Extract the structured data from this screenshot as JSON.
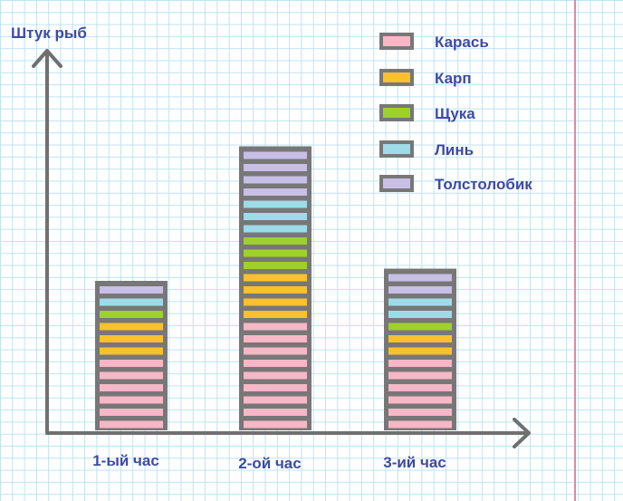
{
  "chart_data": {
    "type": "stacked-bar",
    "ylabel": "Штук рыб",
    "categories": [
      "1-ый час",
      "2-ой час",
      "3-ий час"
    ],
    "series": [
      {
        "name": "Карась",
        "color": "#f7b7c6",
        "values": [
          6,
          9,
          6
        ]
      },
      {
        "name": "Карп",
        "color": "#fbc02d",
        "values": [
          3,
          4,
          2
        ]
      },
      {
        "name": "Щука",
        "color": "#9ed12a",
        "values": [
          1,
          3,
          1
        ]
      },
      {
        "name": "Линь",
        "color": "#9edbe8",
        "values": [
          1,
          3,
          2
        ]
      },
      {
        "name": "Толстолобик",
        "color": "#c8bfe6",
        "values": [
          1,
          4,
          2
        ]
      }
    ],
    "legend_position": "top-right",
    "grid": true
  },
  "colors": {
    "bar_border": "#777777",
    "axis": "#707070",
    "label": "#3d4aa6"
  }
}
